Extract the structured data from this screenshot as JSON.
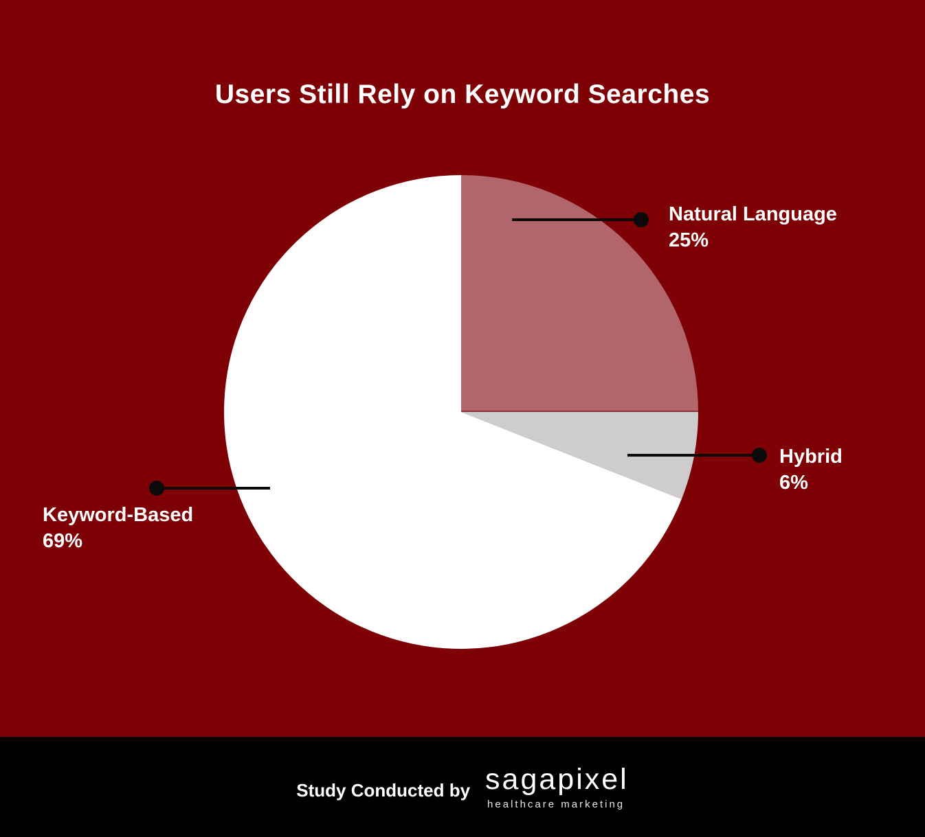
{
  "title": "Users Still Rely on Keyword Searches",
  "colors": {
    "background": "#7D0105",
    "footer_background": "#000000",
    "title_text": "#FFFFFF",
    "callout_text": "#FFFFFF",
    "callout_line": "#0A0A0A",
    "slice_divider": "#8D3036"
  },
  "chart_data": {
    "type": "pie",
    "title": "Users Still Rely on Keyword Searches",
    "start_angle_deg": -90,
    "direction": "clockwise",
    "legend_position": "callout-labels",
    "slices": [
      {
        "id": "natural-language",
        "label": "Natural Language",
        "value": 25,
        "display": "25%",
        "color": "#B2666C"
      },
      {
        "id": "hybrid",
        "label": "Hybrid",
        "value": 6,
        "display": "6%",
        "color": "#CECCCC"
      },
      {
        "id": "keyword-based",
        "label": "Keyword-Based",
        "value": 69,
        "display": "69%",
        "color": "#FFFFFF"
      }
    ]
  },
  "footer": {
    "credit_text": "Study Conducted by",
    "logo_name": "sagapixel",
    "logo_tagline": "healthcare marketing"
  }
}
